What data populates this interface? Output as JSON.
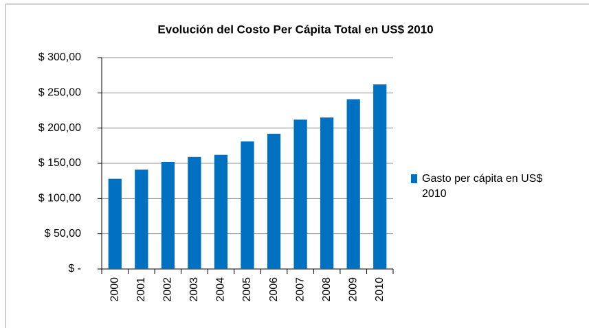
{
  "chart_data": {
    "type": "bar",
    "title": "Evolución del Costo Per Cápita  Total en US$ 2010",
    "categories": [
      "2000",
      "2001",
      "2002",
      "2003",
      "2004",
      "2005",
      "2006",
      "2007",
      "2008",
      "2009",
      "2010"
    ],
    "series": [
      {
        "name": "Gasto per cápita en US$ 2010",
        "color": "#0070c0",
        "values": [
          128,
          141,
          152,
          159,
          162,
          181,
          192,
          212,
          215,
          241,
          262
        ]
      }
    ],
    "ylim": [
      0,
      300
    ],
    "yticks": [
      {
        "value": 0,
        "label": "$ -"
      },
      {
        "value": 50,
        "label": "$ 50,00"
      },
      {
        "value": 100,
        "label": "$ 100,00"
      },
      {
        "value": 150,
        "label": "$ 150,00"
      },
      {
        "value": 200,
        "label": "$ 200,00"
      },
      {
        "value": 250,
        "label": "$ 250,00"
      },
      {
        "value": 300,
        "label": "$ 300,00"
      }
    ],
    "grid": true,
    "legend": "right"
  }
}
